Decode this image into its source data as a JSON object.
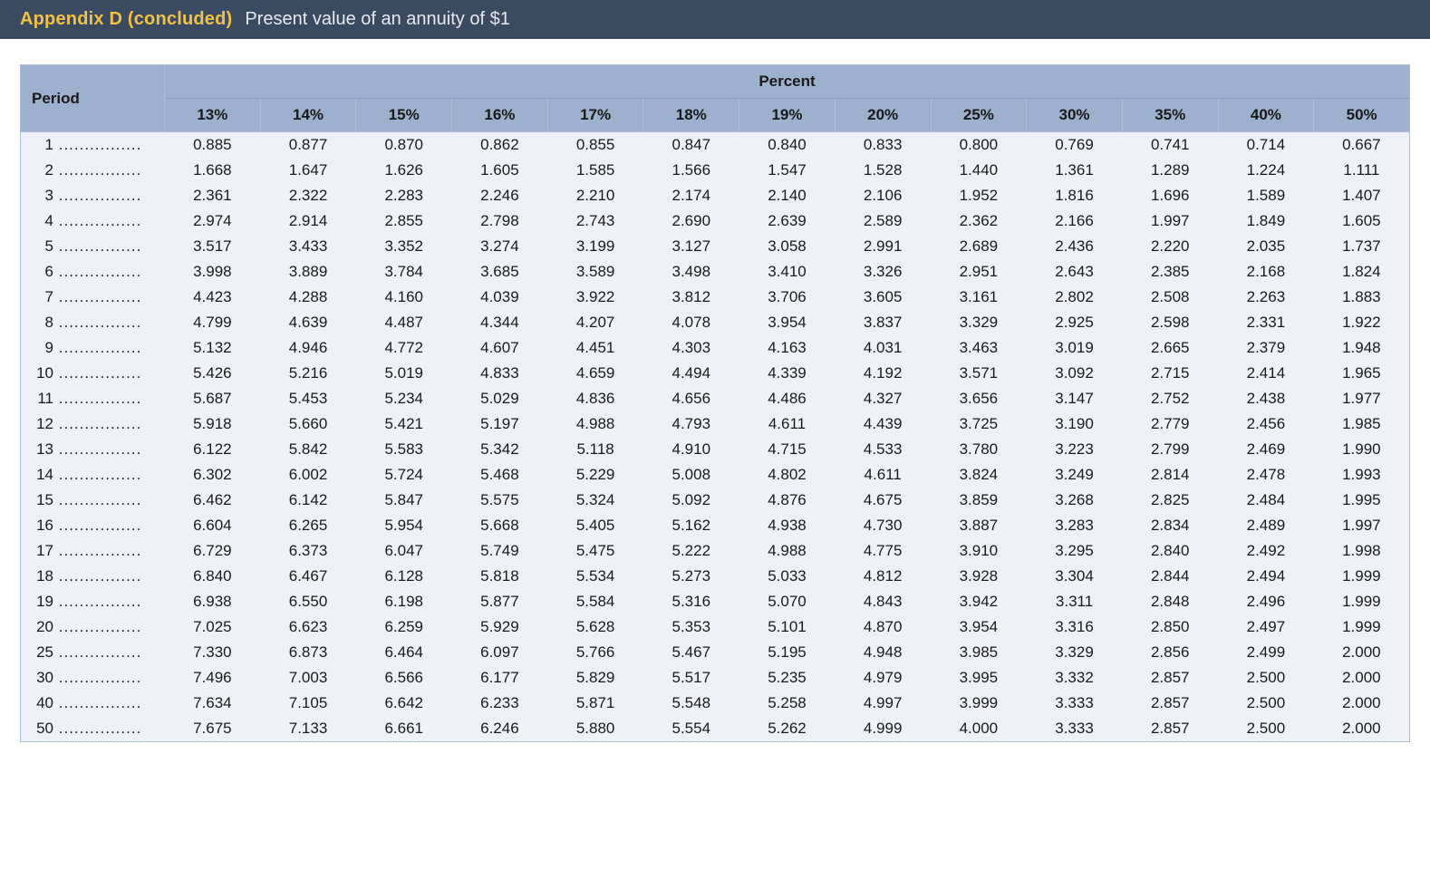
{
  "title": {
    "appendix": "Appendix D (concluded)",
    "subtitle": "Present value of an annuity of $1"
  },
  "table": {
    "percent_label": "Percent",
    "period_label": "Period",
    "columns": [
      "13%",
      "14%",
      "15%",
      "16%",
      "17%",
      "18%",
      "19%",
      "20%",
      "25%",
      "30%",
      "35%",
      "40%",
      "50%"
    ],
    "periods": [
      "1",
      "2",
      "3",
      "4",
      "5",
      "6",
      "7",
      "8",
      "9",
      "10",
      "11",
      "12",
      "13",
      "14",
      "15",
      "16",
      "17",
      "18",
      "19",
      "20",
      "25",
      "30",
      "40",
      "50"
    ],
    "rows": [
      [
        "0.885",
        "0.877",
        "0.870",
        "0.862",
        "0.855",
        "0.847",
        "0.840",
        "0.833",
        "0.800",
        "0.769",
        "0.741",
        "0.714",
        "0.667"
      ],
      [
        "1.668",
        "1.647",
        "1.626",
        "1.605",
        "1.585",
        "1.566",
        "1.547",
        "1.528",
        "1.440",
        "1.361",
        "1.289",
        "1.224",
        "1.111"
      ],
      [
        "2.361",
        "2.322",
        "2.283",
        "2.246",
        "2.210",
        "2.174",
        "2.140",
        "2.106",
        "1.952",
        "1.816",
        "1.696",
        "1.589",
        "1.407"
      ],
      [
        "2.974",
        "2.914",
        "2.855",
        "2.798",
        "2.743",
        "2.690",
        "2.639",
        "2.589",
        "2.362",
        "2.166",
        "1.997",
        "1.849",
        "1.605"
      ],
      [
        "3.517",
        "3.433",
        "3.352",
        "3.274",
        "3.199",
        "3.127",
        "3.058",
        "2.991",
        "2.689",
        "2.436",
        "2.220",
        "2.035",
        "1.737"
      ],
      [
        "3.998",
        "3.889",
        "3.784",
        "3.685",
        "3.589",
        "3.498",
        "3.410",
        "3.326",
        "2.951",
        "2.643",
        "2.385",
        "2.168",
        "1.824"
      ],
      [
        "4.423",
        "4.288",
        "4.160",
        "4.039",
        "3.922",
        "3.812",
        "3.706",
        "3.605",
        "3.161",
        "2.802",
        "2.508",
        "2.263",
        "1.883"
      ],
      [
        "4.799",
        "4.639",
        "4.487",
        "4.344",
        "4.207",
        "4.078",
        "3.954",
        "3.837",
        "3.329",
        "2.925",
        "2.598",
        "2.331",
        "1.922"
      ],
      [
        "5.132",
        "4.946",
        "4.772",
        "4.607",
        "4.451",
        "4.303",
        "4.163",
        "4.031",
        "3.463",
        "3.019",
        "2.665",
        "2.379",
        "1.948"
      ],
      [
        "5.426",
        "5.216",
        "5.019",
        "4.833",
        "4.659",
        "4.494",
        "4.339",
        "4.192",
        "3.571",
        "3.092",
        "2.715",
        "2.414",
        "1.965"
      ],
      [
        "5.687",
        "5.453",
        "5.234",
        "5.029",
        "4.836",
        "4.656",
        "4.486",
        "4.327",
        "3.656",
        "3.147",
        "2.752",
        "2.438",
        "1.977"
      ],
      [
        "5.918",
        "5.660",
        "5.421",
        "5.197",
        "4.988",
        "4.793",
        "4.611",
        "4.439",
        "3.725",
        "3.190",
        "2.779",
        "2.456",
        "1.985"
      ],
      [
        "6.122",
        "5.842",
        "5.583",
        "5.342",
        "5.118",
        "4.910",
        "4.715",
        "4.533",
        "3.780",
        "3.223",
        "2.799",
        "2.469",
        "1.990"
      ],
      [
        "6.302",
        "6.002",
        "5.724",
        "5.468",
        "5.229",
        "5.008",
        "4.802",
        "4.611",
        "3.824",
        "3.249",
        "2.814",
        "2.478",
        "1.993"
      ],
      [
        "6.462",
        "6.142",
        "5.847",
        "5.575",
        "5.324",
        "5.092",
        "4.876",
        "4.675",
        "3.859",
        "3.268",
        "2.825",
        "2.484",
        "1.995"
      ],
      [
        "6.604",
        "6.265",
        "5.954",
        "5.668",
        "5.405",
        "5.162",
        "4.938",
        "4.730",
        "3.887",
        "3.283",
        "2.834",
        "2.489",
        "1.997"
      ],
      [
        "6.729",
        "6.373",
        "6.047",
        "5.749",
        "5.475",
        "5.222",
        "4.988",
        "4.775",
        "3.910",
        "3.295",
        "2.840",
        "2.492",
        "1.998"
      ],
      [
        "6.840",
        "6.467",
        "6.128",
        "5.818",
        "5.534",
        "5.273",
        "5.033",
        "4.812",
        "3.928",
        "3.304",
        "2.844",
        "2.494",
        "1.999"
      ],
      [
        "6.938",
        "6.550",
        "6.198",
        "5.877",
        "5.584",
        "5.316",
        "5.070",
        "4.843",
        "3.942",
        "3.311",
        "2.848",
        "2.496",
        "1.999"
      ],
      [
        "7.025",
        "6.623",
        "6.259",
        "5.929",
        "5.628",
        "5.353",
        "5.101",
        "4.870",
        "3.954",
        "3.316",
        "2.850",
        "2.497",
        "1.999"
      ],
      [
        "7.330",
        "6.873",
        "6.464",
        "6.097",
        "5.766",
        "5.467",
        "5.195",
        "4.948",
        "3.985",
        "3.329",
        "2.856",
        "2.499",
        "2.000"
      ],
      [
        "7.496",
        "7.003",
        "6.566",
        "6.177",
        "5.829",
        "5.517",
        "5.235",
        "4.979",
        "3.995",
        "3.332",
        "2.857",
        "2.500",
        "2.000"
      ],
      [
        "7.634",
        "7.105",
        "6.642",
        "6.233",
        "5.871",
        "5.548",
        "5.258",
        "4.997",
        "3.999",
        "3.333",
        "2.857",
        "2.500",
        "2.000"
      ],
      [
        "7.675",
        "7.133",
        "6.661",
        "6.246",
        "5.880",
        "5.554",
        "5.262",
        "4.999",
        "4.000",
        "3.333",
        "2.857",
        "2.500",
        "2.000"
      ]
    ],
    "dot_leader": " ................",
    "colors": {
      "title_bar_bg": "#3a4a60",
      "appendix_color": "#f3c142",
      "header_bg": "#9db0cd",
      "body_bg": "#eef2f8",
      "border": "#b1bed3"
    }
  }
}
